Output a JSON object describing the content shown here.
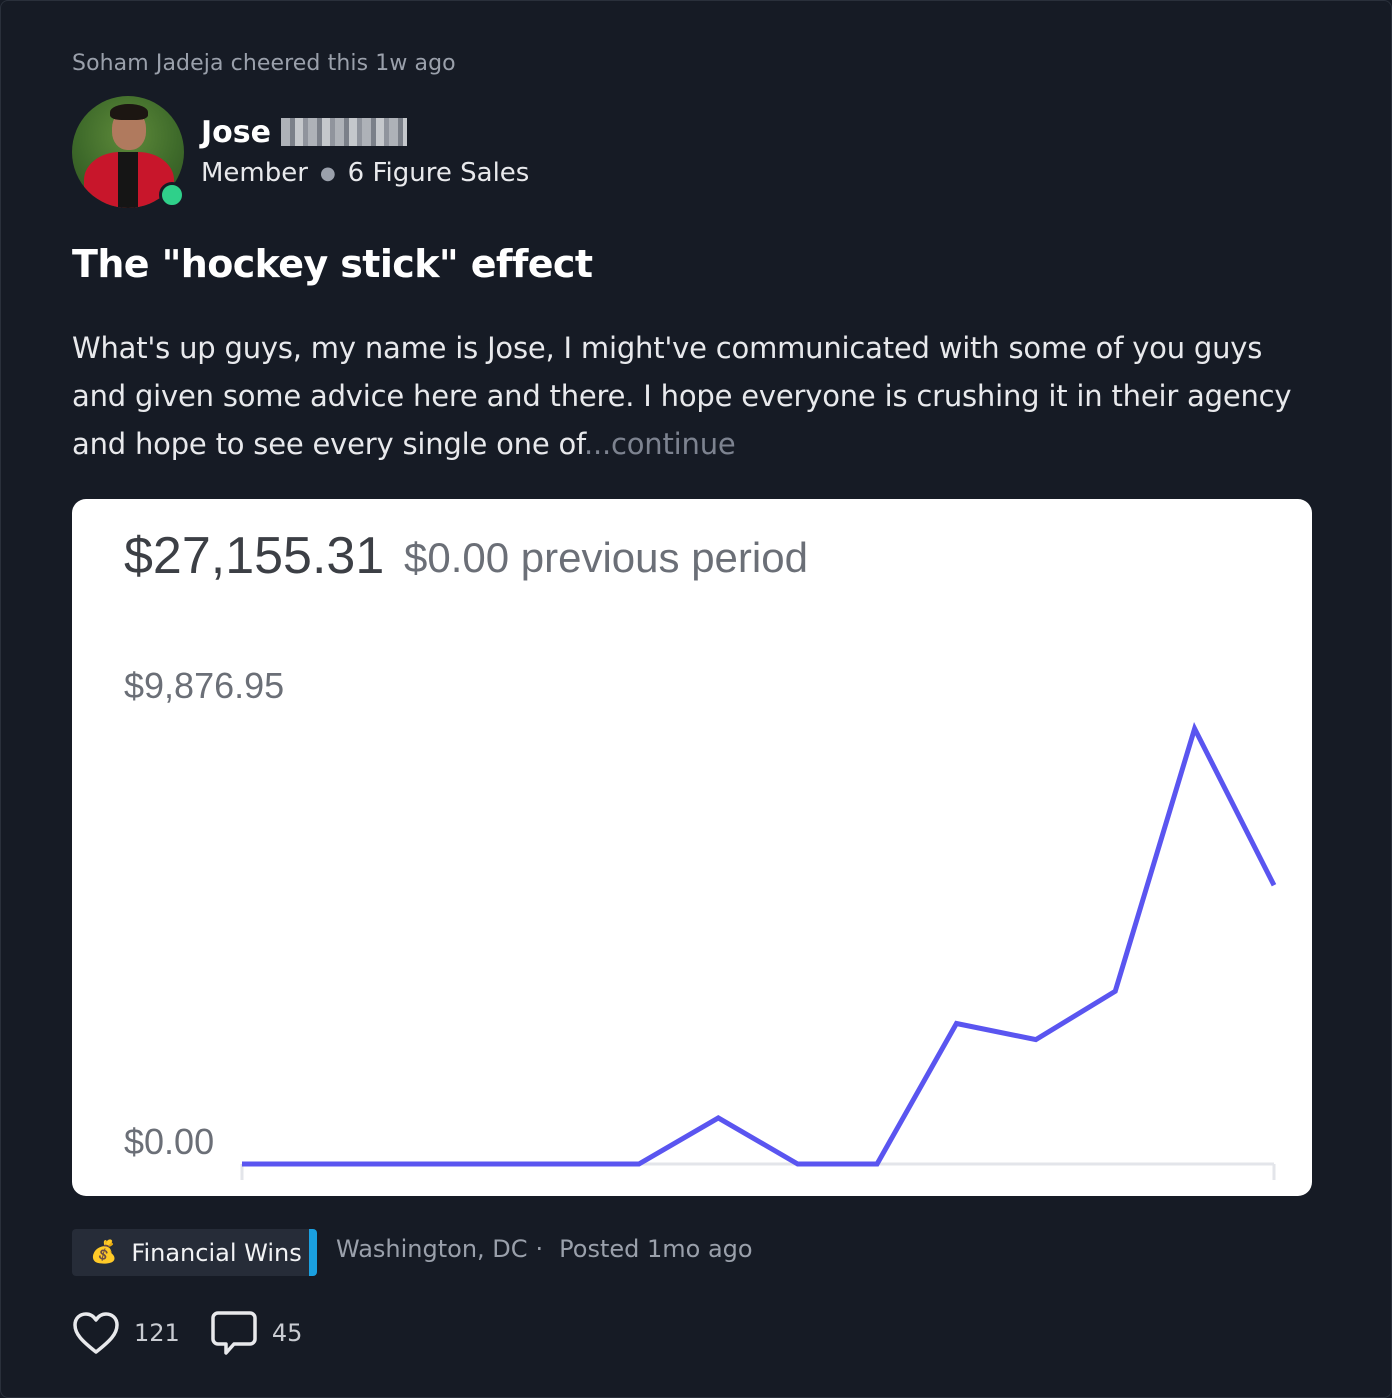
{
  "feed": {
    "activity": "Soham Jadeja cheered this 1w ago"
  },
  "author": {
    "first_name": "Jose",
    "role": "Member",
    "badge": "6 Figure Sales",
    "online_color": "#2fd08a"
  },
  "post": {
    "title": "The \"hockey stick\" effect",
    "body": "What's up guys, my name is Jose, I might've communicated with some of you guys and given some advice here and there. I hope everyone is crushing it in their agency and hope to see every single one of",
    "continue_label": "...continue",
    "category": "Financial Wins",
    "category_icon": "money-bag-icon",
    "location": "Washington, DC",
    "location_sep": "·",
    "posted": "Posted 1mo ago",
    "likes": "121",
    "comments": "45"
  },
  "chart_data": {
    "type": "line",
    "total": "$27,155.31",
    "previous_period": "$0.00 previous period",
    "y_tick_labels": [
      "$9,876.95",
      "$0.00"
    ],
    "ylim": [
      0,
      9876.95
    ],
    "x": [
      0,
      1,
      2,
      3,
      4,
      5,
      6,
      7,
      8,
      9,
      10,
      11,
      12,
      13
    ],
    "series": [
      {
        "values": [
          0,
          0,
          0,
          0,
          1000,
          0,
          0,
          3050,
          2700,
          3750,
          9450,
          6050
        ],
        "x": [
          0,
          3,
          4,
          5,
          6,
          7,
          8,
          9,
          10,
          11,
          12,
          13
        ],
        "color": "#5a55f0"
      }
    ],
    "grid": false,
    "baseline_color": "#e3e5ea"
  }
}
